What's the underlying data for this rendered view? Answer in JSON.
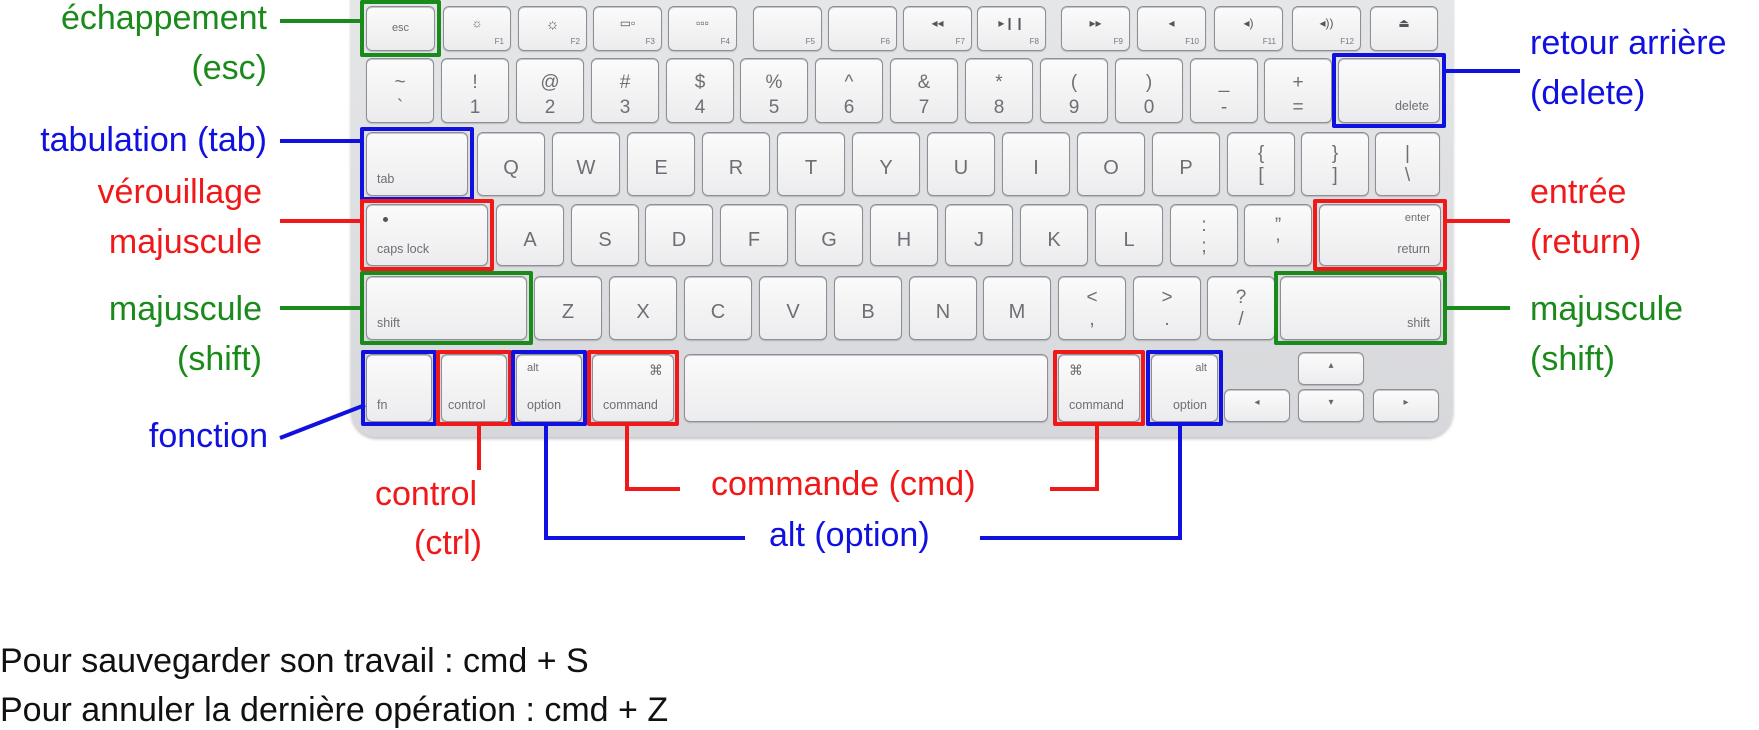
{
  "keys": {
    "esc": "esc",
    "f1": "F1",
    "f2": "F2",
    "f3": "F3",
    "f4": "F4",
    "f5": "F5",
    "f6": "F6",
    "f7": "F7",
    "f8": "F8",
    "f9": "F9",
    "f10": "F10",
    "f11": "F11",
    "f12": "F12",
    "num": [
      [
        "~",
        "`"
      ],
      [
        "!",
        "1"
      ],
      [
        "@",
        "2"
      ],
      [
        "#",
        "3"
      ],
      [
        "$",
        "4"
      ],
      [
        "%",
        "5"
      ],
      [
        "^",
        "6"
      ],
      [
        "&",
        "7"
      ],
      [
        "*",
        "8"
      ],
      [
        "(",
        "9"
      ],
      [
        ")",
        "0"
      ],
      [
        "_",
        "-"
      ],
      [
        "+",
        "="
      ]
    ],
    "delete": "delete",
    "tab": "tab",
    "qrow": [
      "Q",
      "W",
      "E",
      "R",
      "T",
      "Y",
      "U",
      "I",
      "O",
      "P"
    ],
    "bracket_open": [
      "{",
      "["
    ],
    "bracket_close": [
      "}",
      "]"
    ],
    "pipe": [
      "|",
      "\\"
    ],
    "caps_lock": "caps lock",
    "arow": [
      "A",
      "S",
      "D",
      "F",
      "G",
      "H",
      "J",
      "K",
      "L"
    ],
    "colon": [
      ":",
      ";"
    ],
    "quote": [
      "”",
      "’"
    ],
    "enter": "enter",
    "return": "return",
    "shift": "shift",
    "zrow": [
      "Z",
      "X",
      "C",
      "V",
      "B",
      "N",
      "M"
    ],
    "comma": [
      "<",
      ","
    ],
    "period": [
      ">",
      "."
    ],
    "slash": [
      "?",
      "/"
    ],
    "fn": "fn",
    "control": "control",
    "alt": "alt",
    "option": "option",
    "command": "command",
    "cmd_symbol": "⌘"
  },
  "labels": {
    "escape": "échappement",
    "escape_sub": "(esc)",
    "backspace": "retour arrière",
    "backspace_sub": "(delete)",
    "tab": "tabulation (tab)",
    "capslock_1": "vérouillage",
    "capslock_2": "majuscule",
    "enter": "entrée",
    "enter_sub": "(return)",
    "shift_left": "majuscule",
    "shift_left_sub": "(shift)",
    "shift_right": "majuscule",
    "shift_right_sub": "(shift)",
    "fn": "fonction",
    "control": "control",
    "control_sub": "(ctrl)",
    "command": "commande (cmd)",
    "alt": "alt (option)"
  },
  "notes": {
    "save": "Pour sauvegarder son travail : cmd + S",
    "undo": "Pour annuler la dernière opération : cmd + Z"
  },
  "colors": {
    "green": "#1a8a1a",
    "blue": "#1010e0",
    "red": "#f01818"
  }
}
